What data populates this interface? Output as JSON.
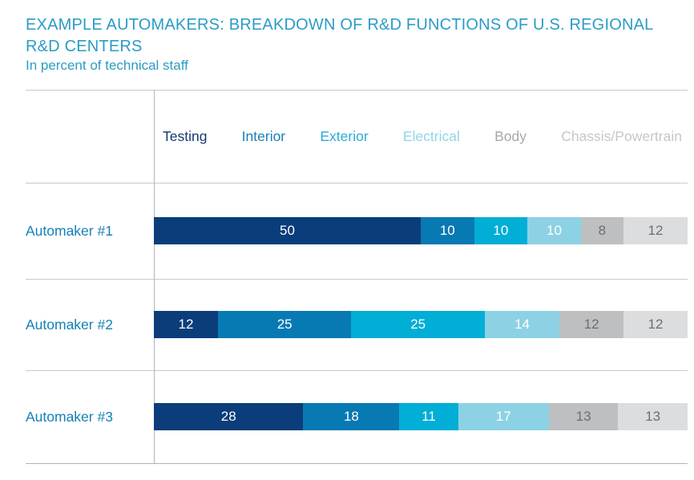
{
  "chart_data": {
    "type": "bar",
    "variant": "horizontal-stacked",
    "title": "EXAMPLE AUTOMAKERS: BREAKDOWN OF R&D FUNCTIONS OF U.S. REGIONAL R&D CENTERS",
    "subtitle": "In percent of technical staff",
    "unit": "percent of technical staff",
    "xlim": [
      0,
      100
    ],
    "legend_position": "top",
    "grid": "row-dividers",
    "title_color": "#2b9cc6",
    "row_label_color": "#1580b5",
    "categories": [
      "Automaker #1",
      "Automaker #2",
      "Automaker #3"
    ],
    "series": [
      {
        "name": "Testing",
        "color": "#0a3d7a",
        "legend_color": "#163a6e",
        "value_text_color": "#ffffff",
        "values": [
          50,
          12,
          28
        ]
      },
      {
        "name": "Interior",
        "color": "#0779b3",
        "legend_color": "#1b7eb8",
        "value_text_color": "#ffffff",
        "values": [
          10,
          25,
          18
        ]
      },
      {
        "name": "Exterior",
        "color": "#00aed6",
        "legend_color": "#2caad5",
        "value_text_color": "#ffffff",
        "values": [
          10,
          25,
          11
        ]
      },
      {
        "name": "Electrical",
        "color": "#8cd2e4",
        "legend_color": "#92d5e8",
        "value_text_color": "#ffffff",
        "values": [
          10,
          14,
          17
        ]
      },
      {
        "name": "Body",
        "color": "#bdbfc1",
        "legend_color": "#a5a7aa",
        "value_text_color": "#6d6e71",
        "values": [
          8,
          12,
          13
        ]
      },
      {
        "name": "Chassis/Powertrain",
        "color": "#dcddde",
        "legend_color": "#c6c7c9",
        "value_text_color": "#6d6e71",
        "values": [
          12,
          12,
          13
        ]
      }
    ]
  }
}
